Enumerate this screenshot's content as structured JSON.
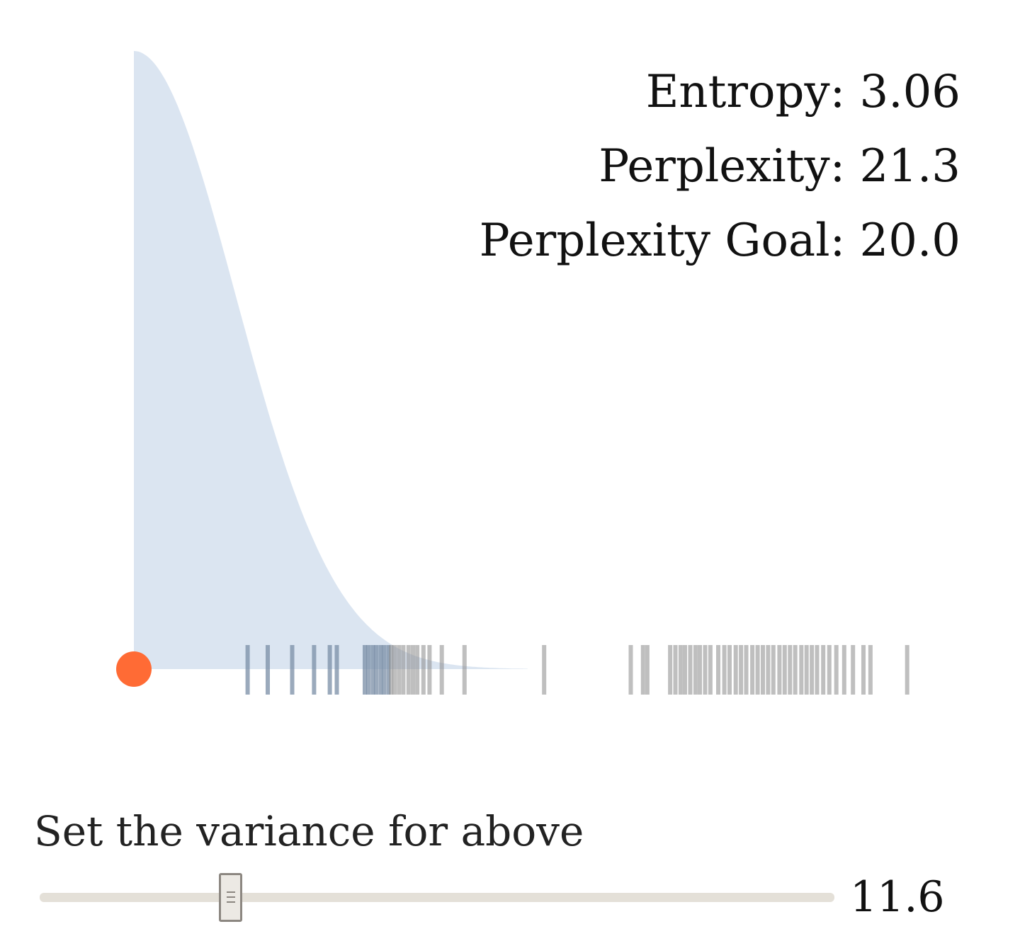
{
  "stats": {
    "entropy_label": "Entropy: 3.06",
    "perplexity_label": "Perplexity: 21.3",
    "goal_label": "Perplexity Goal: 20.0"
  },
  "control": {
    "label": "Set the variance for above",
    "value_text": "11.6",
    "value": 11.6,
    "min": 0,
    "max": 50
  },
  "colors": {
    "density_fill": "#d5e1ef",
    "marker": "#ff6b35",
    "tick_blue": "#7a8ea5",
    "tick_gray": "#8a8a8a",
    "track": "#e4e0d8",
    "thumb": "#ece9e4"
  },
  "chart_data": {
    "type": "scatter",
    "description_series": "rug",
    "marker": {
      "x": 0
    },
    "density": {
      "mean": 0,
      "sd": 11.6
    },
    "xlim": [
      0,
      100
    ],
    "rug_blue": [
      13.0,
      15.3,
      18.1,
      20.6,
      22.4,
      23.2,
      26.4,
      26.8,
      27.3,
      27.7,
      28.2,
      28.6,
      29.1
    ],
    "rug_gray": [
      29.4,
      29.8,
      30.3,
      30.8,
      31.4,
      31.9,
      32.4,
      33.1,
      33.8,
      35.2,
      37.8,
      46.9,
      56.8,
      58.2,
      58.7,
      61.3,
      61.9,
      62.5,
      63.0,
      63.6,
      64.2,
      64.7,
      65.3,
      65.9,
      66.8,
      67.5,
      68.1,
      68.8,
      69.4,
      70.0,
      70.7,
      71.3,
      71.9,
      72.5,
      73.1,
      73.8,
      74.4,
      75.0,
      75.6,
      76.3,
      76.9,
      77.5,
      78.1,
      78.8,
      79.5,
      80.3,
      81.2,
      82.2,
      83.4,
      84.2,
      88.4
    ]
  }
}
